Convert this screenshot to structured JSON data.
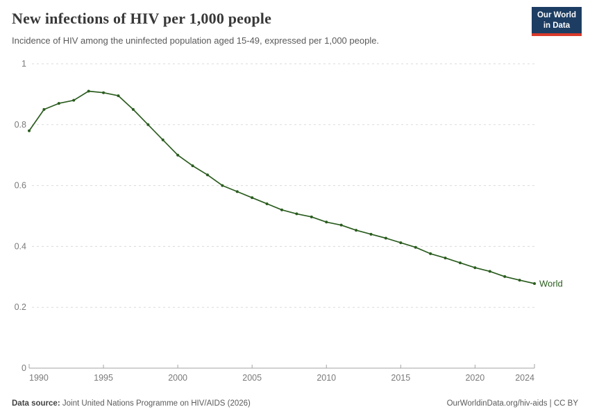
{
  "header": {
    "title": "New infections of HIV per 1,000 people",
    "subtitle": "Incidence of HIV among the uninfected population aged 15-49, expressed per 1,000 people.",
    "logo": {
      "line1": "Our World",
      "line2": "in Data"
    }
  },
  "chart_data": {
    "type": "line",
    "title": "New infections of HIV per 1,000 people",
    "xlabel": "",
    "ylabel": "",
    "xlim": [
      1990,
      2024
    ],
    "ylim": [
      0,
      1
    ],
    "x_ticks": [
      1990,
      1995,
      2000,
      2005,
      2010,
      2015,
      2020,
      2024
    ],
    "y_ticks": [
      0,
      0.2,
      0.4,
      0.6,
      0.8,
      1
    ],
    "y_tick_labels": [
      "0",
      "0.2",
      "0.4",
      "0.6",
      "0.8",
      "1"
    ],
    "grid": "horizontal-dashed",
    "legend_position": "end-of-line",
    "series": [
      {
        "name": "World",
        "color": "#2a5c1e",
        "x": [
          1990,
          1991,
          1992,
          1993,
          1994,
          1995,
          1996,
          1997,
          1998,
          1999,
          2000,
          2001,
          2002,
          2003,
          2004,
          2005,
          2006,
          2007,
          2008,
          2009,
          2010,
          2011,
          2012,
          2013,
          2014,
          2015,
          2016,
          2017,
          2018,
          2019,
          2020,
          2021,
          2022,
          2023,
          2024
        ],
        "values": [
          0.78,
          0.85,
          0.87,
          0.88,
          0.91,
          0.905,
          0.895,
          0.85,
          0.8,
          0.75,
          0.7,
          0.665,
          0.635,
          0.6,
          0.58,
          0.56,
          0.54,
          0.52,
          0.507,
          0.497,
          0.48,
          0.47,
          0.453,
          0.44,
          0.427,
          0.412,
          0.397,
          0.376,
          0.362,
          0.346,
          0.33,
          0.318,
          0.301,
          0.289,
          0.278
        ]
      }
    ]
  },
  "footer": {
    "datasource_label": "Data source:",
    "datasource": "Joint United Nations Programme on HIV/AIDS (2026)",
    "link": "OurWorldinData.org/hiv-aids | CC BY"
  },
  "colors": {
    "series_green": "#2a5c1e",
    "logo_navy": "#1d3d63",
    "logo_red": "#d93a2b",
    "grid": "#dadada",
    "axis": "#a3a3a3",
    "tick_text": "#7a7a7a"
  }
}
